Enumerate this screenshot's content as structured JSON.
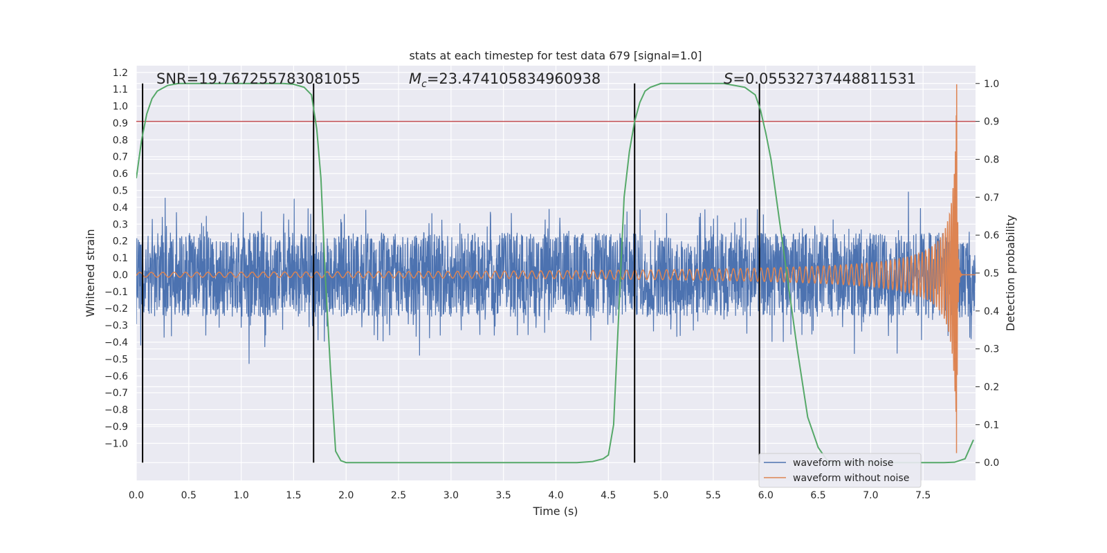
{
  "chart_data": {
    "type": "line",
    "title": "stats at each timestep for test data 679 [signal=1.0]",
    "xlabel": "Time (s)",
    "ylabel": "Whitened strain",
    "y2label": "Detection probability",
    "xlim": [
      0.0,
      8.0
    ],
    "ylim": [
      -1.22,
      1.24
    ],
    "y2lim": [
      -0.047,
      1.047
    ],
    "xticks": [
      "0.0",
      "0.5",
      "1.0",
      "1.5",
      "2.0",
      "2.5",
      "3.0",
      "3.5",
      "4.0",
      "4.5",
      "5.0",
      "5.5",
      "6.0",
      "6.5",
      "7.0",
      "7.5"
    ],
    "yticks": [
      "1.2",
      "1.1",
      "1.0",
      "0.9",
      "0.8",
      "0.7",
      "0.6",
      "0.5",
      "0.4",
      "0.3",
      "0.2",
      "0.1",
      "0.0",
      "−0.1",
      "−0.2",
      "−0.3",
      "−0.4",
      "−0.5",
      "−0.6",
      "−0.7",
      "−0.8",
      "−0.9",
      "−1.0"
    ],
    "y2ticks": [
      "1.0",
      "0.9",
      "0.8",
      "0.7",
      "0.6",
      "0.5",
      "0.4",
      "0.3",
      "0.2",
      "0.1",
      "0.0"
    ],
    "grid": true,
    "legend_position": "lower-right",
    "annotations": {
      "snr": "SNR=19.767255783081055",
      "mc": "=23.474105834960938",
      "mc_symbol": "M",
      "mc_sub": "c",
      "s": "=0.05532737448811531",
      "s_symbol": "S"
    },
    "threshold_y2": 0.9,
    "vertical_lines_x": [
      0.06,
      1.69,
      4.75,
      5.94
    ],
    "noise_envelope": {
      "inner": 0.25,
      "outer": 0.4,
      "spike_max": 0.58
    },
    "series": [
      {
        "name": "waveform with noise",
        "color": "#4c72b0",
        "axis": "left"
      },
      {
        "name": "waveform without noise",
        "color": "#dd8452",
        "axis": "left",
        "merger_time": 7.82,
        "peak_amplitude": 1.13
      },
      {
        "name": "",
        "color": "#55a868",
        "axis": "right",
        "x": [
          0.0,
          0.05,
          0.1,
          0.15,
          0.2,
          0.3,
          0.4,
          0.5,
          0.6,
          0.8,
          1.0,
          1.2,
          1.4,
          1.5,
          1.6,
          1.67,
          1.72,
          1.76,
          1.8,
          1.85,
          1.9,
          1.95,
          2.0,
          2.5,
          3.0,
          3.5,
          4.0,
          4.2,
          4.35,
          4.45,
          4.5,
          4.55,
          4.6,
          4.65,
          4.7,
          4.75,
          4.8,
          4.85,
          4.9,
          5.0,
          5.1,
          5.2,
          5.4,
          5.6,
          5.8,
          5.9,
          5.95,
          6.0,
          6.05,
          6.1,
          6.15,
          6.2,
          6.3,
          6.4,
          6.5,
          6.6,
          7.0,
          7.5,
          7.7,
          7.8,
          7.9,
          7.98
        ],
        "values": [
          0.75,
          0.85,
          0.92,
          0.96,
          0.98,
          0.995,
          1.0,
          1.0,
          1.0,
          1.0,
          1.0,
          1.0,
          1.0,
          0.998,
          0.99,
          0.97,
          0.88,
          0.75,
          0.5,
          0.25,
          0.03,
          0.005,
          0.0,
          0.0,
          0.0,
          0.0,
          0.0,
          0.0,
          0.003,
          0.01,
          0.02,
          0.1,
          0.4,
          0.7,
          0.82,
          0.9,
          0.95,
          0.98,
          0.99,
          1.0,
          1.0,
          1.0,
          1.0,
          1.0,
          0.99,
          0.97,
          0.93,
          0.87,
          0.8,
          0.7,
          0.6,
          0.5,
          0.3,
          0.12,
          0.04,
          0.0,
          0.0,
          0.0,
          0.0,
          0.001,
          0.01,
          0.06
        ]
      }
    ]
  }
}
